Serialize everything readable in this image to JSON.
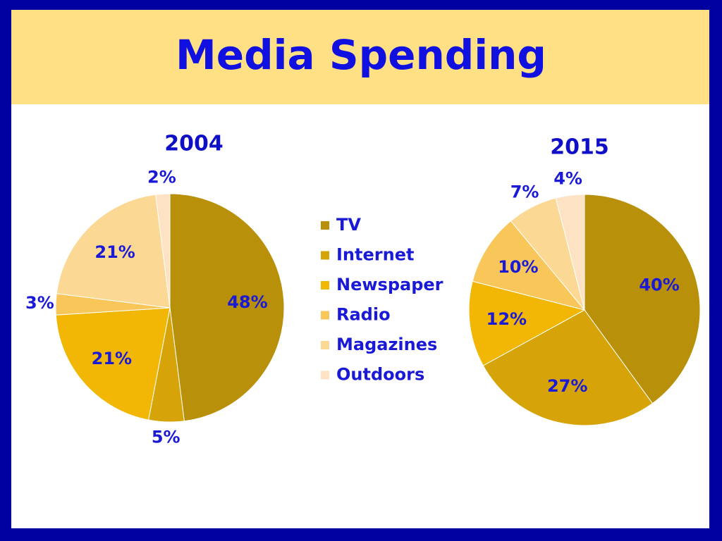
{
  "title": "Media Spending",
  "legend": {
    "labels": [
      "TV",
      "Internet",
      "Newspaper",
      "Radio",
      "Magazines",
      "Outdoors"
    ],
    "colors": [
      "#b8900a",
      "#d6a308",
      "#f2b705",
      "#f9c65a",
      "#fbd894",
      "#fde3c4"
    ]
  },
  "chart_data": [
    {
      "type": "pie",
      "title": "2004",
      "values": [
        48,
        5,
        21,
        3,
        21,
        2
      ],
      "value_labels": [
        "48%",
        "5%",
        "21%",
        "3%",
        "21%",
        "2%"
      ]
    },
    {
      "type": "pie",
      "title": "2015",
      "values": [
        40,
        27,
        12,
        10,
        7,
        4
      ],
      "value_labels": [
        "40%",
        "27%",
        "12%",
        "10%",
        "7%",
        "4%"
      ]
    }
  ]
}
